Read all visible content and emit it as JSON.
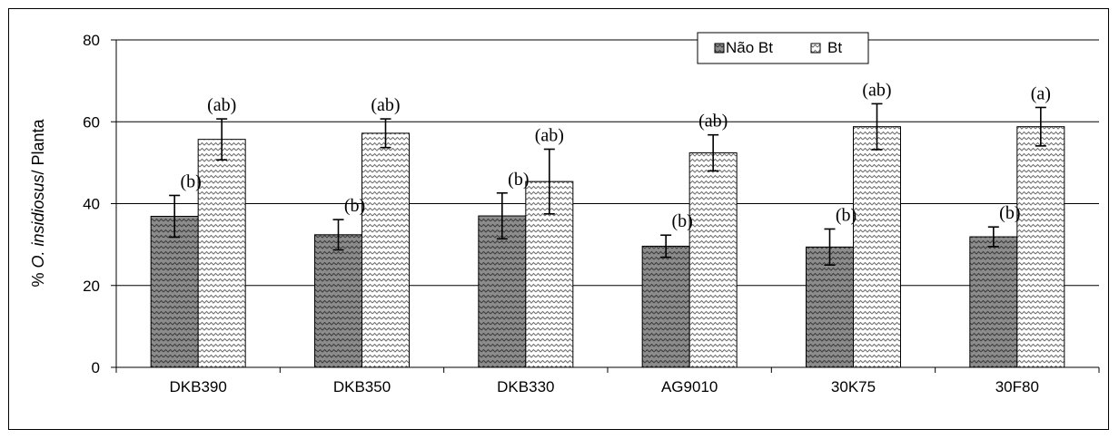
{
  "chart_data": {
    "type": "bar",
    "title": "",
    "xlabel": "",
    "ylabel": {
      "prefix": "% ",
      "italic": "O. insidiosus",
      "suffix": "/ Planta"
    },
    "ylim": [
      0,
      80
    ],
    "yticks": [
      0,
      20,
      40,
      60,
      80
    ],
    "grid": true,
    "legend_position": "top-right",
    "categories": [
      "DKB390",
      "DKB350",
      "DKB330",
      "AG9010",
      "30K75",
      "30F80"
    ],
    "series": [
      {
        "name": "Não Bt",
        "values": [
          36.9,
          32.4,
          37.0,
          29.6,
          29.4,
          31.9
        ],
        "error": [
          5.1,
          3.7,
          5.6,
          2.7,
          4.4,
          2.4
        ],
        "letters": [
          "(b)",
          "(b)",
          "(b)",
          "(b)",
          "(b)",
          "(b)"
        ],
        "color": "#8c8c8c",
        "pattern": "dark-zigzag"
      },
      {
        "name": "Bt",
        "values": [
          55.7,
          57.2,
          45.4,
          52.4,
          58.8,
          58.8
        ],
        "error": [
          5.0,
          3.5,
          7.9,
          4.4,
          5.6,
          4.7
        ],
        "letters": [
          "(ab)",
          "(ab)",
          "(ab)",
          "(ab)",
          "(ab)",
          "(a)"
        ],
        "color": "#ffffff",
        "pattern": "light-zigzag"
      }
    ]
  }
}
